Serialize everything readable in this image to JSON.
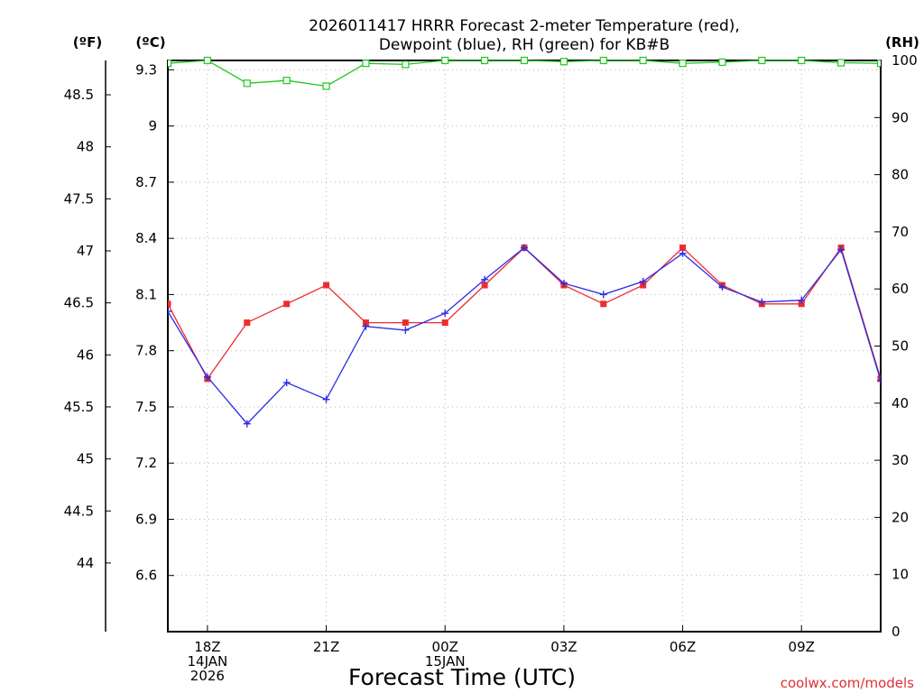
{
  "chart_data": {
    "type": "line",
    "title_line1": "2026011417 HRRR Forecast 2-meter Temperature (red),",
    "title_line2": "Dewpoint (blue), RH (green) for KB#B",
    "xlabel": "Forecast Time (UTC)",
    "credit": "coolwx.com/models",
    "unit_left_f": "(ºF)",
    "unit_left_c": "(ºC)",
    "unit_right": "(RH)",
    "x": [
      17,
      18,
      19,
      20,
      21,
      22,
      23,
      24,
      25,
      26,
      27,
      28,
      29,
      30,
      31,
      32,
      33,
      34,
      35
    ],
    "xlim": [
      17,
      35
    ],
    "x_ticks": [
      {
        "x": 18,
        "lines": [
          "18Z",
          "14JAN",
          "2026"
        ]
      },
      {
        "x": 21,
        "lines": [
          "21Z"
        ]
      },
      {
        "x": 24,
        "lines": [
          "00Z",
          "15JAN"
        ]
      },
      {
        "x": 27,
        "lines": [
          "03Z"
        ]
      },
      {
        "x": 30,
        "lines": [
          "06Z"
        ]
      },
      {
        "x": 33,
        "lines": [
          "09Z"
        ]
      }
    ],
    "celsius_axis": {
      "ylim": [
        6.3,
        9.35
      ],
      "ticks": [
        "6.6",
        "6.9",
        "7.2",
        "7.5",
        "7.8",
        "8.1",
        "8.4",
        "8.7",
        "9",
        "9.3"
      ]
    },
    "fahrenheit_axis": {
      "ylim": [
        43.34,
        48.83
      ],
      "ticks": [
        "44",
        "44.5",
        "45",
        "45.5",
        "46",
        "46.5",
        "47",
        "47.5",
        "48",
        "48.5"
      ]
    },
    "rh_axis": {
      "ylim": [
        0,
        100
      ],
      "ticks": [
        "0",
        "10",
        "20",
        "30",
        "40",
        "50",
        "60",
        "70",
        "80",
        "90",
        "100"
      ]
    },
    "series": [
      {
        "name": "Temperature",
        "color": "#ee2c2c",
        "marker": "square-filled",
        "axis": "celsius",
        "values": [
          8.05,
          7.65,
          7.95,
          8.05,
          8.15,
          7.95,
          7.95,
          7.95,
          8.15,
          8.35,
          8.15,
          8.05,
          8.15,
          8.35,
          8.15,
          8.05,
          8.05,
          8.35,
          7.65
        ]
      },
      {
        "name": "Dewpoint",
        "color": "#2d2de6",
        "marker": "plus",
        "axis": "celsius",
        "values": [
          8.01,
          7.66,
          7.41,
          7.63,
          7.54,
          7.93,
          7.91,
          8.0,
          8.18,
          8.35,
          8.16,
          8.1,
          8.17,
          8.32,
          8.14,
          8.06,
          8.07,
          8.34,
          7.64
        ]
      },
      {
        "name": "RH",
        "color": "#1ec81e",
        "marker": "square-open",
        "axis": "rh",
        "values": [
          99.5,
          100,
          96,
          96.5,
          95.5,
          99.5,
          99.3,
          100,
          100,
          100,
          99.8,
          100,
          100,
          99.5,
          99.7,
          100,
          100,
          99.6,
          99.5
        ]
      }
    ]
  }
}
